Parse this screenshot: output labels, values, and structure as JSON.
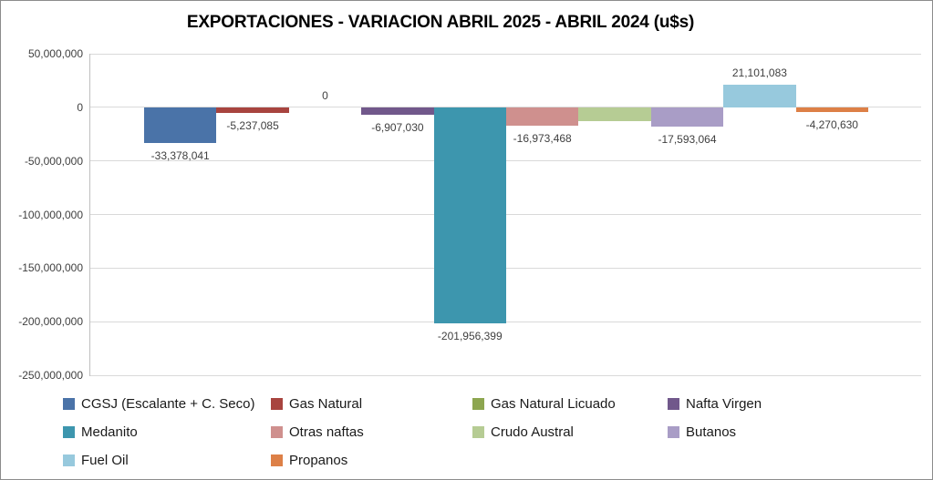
{
  "title": "EXPORTACIONES - VARIACION ABRIL 2025 - ABRIL 2024 (u$s)",
  "chart_data": {
    "type": "bar",
    "title": "EXPORTACIONES - VARIACION ABRIL 2025 - ABRIL 2024 (u$s)",
    "xlabel": "",
    "ylabel": "",
    "ylim": [
      -250000000,
      50000000
    ],
    "grid": "horizontal",
    "legend_position": "bottom",
    "y_ticks": [
      {
        "value": 50000000,
        "label": "50,000,000"
      },
      {
        "value": 0,
        "label": "0"
      },
      {
        "value": -50000000,
        "label": "-50,000,000"
      },
      {
        "value": -100000000,
        "label": "-100,000,000"
      },
      {
        "value": -150000000,
        "label": "-150,000,000"
      },
      {
        "value": -200000000,
        "label": "-200,000,000"
      },
      {
        "value": -250000000,
        "label": "-250,000,000"
      }
    ],
    "series": [
      {
        "name": "CGSJ (Escalante + C. Seco)",
        "value": -33378041,
        "label": "-33,378,041",
        "color": "#4A73A8"
      },
      {
        "name": "Gas Natural",
        "value": -5237085,
        "label": "-5,237,085",
        "color": "#A8443F"
      },
      {
        "name": "Gas Natural Licuado",
        "value": 0,
        "label": "0",
        "color": "#8DA650"
      },
      {
        "name": "Nafta Virgen",
        "value": -6907030,
        "label": "-6,907,030",
        "color": "#71588B"
      },
      {
        "name": "Medanito",
        "value": -201956399,
        "label": "-201,956,399",
        "color": "#3D96AE"
      },
      {
        "name": "Otras naftas",
        "value": -16973468,
        "label": "-16,973,468",
        "color": "#CF908E"
      },
      {
        "name": "Crudo Austral",
        "value": -12750000,
        "label": "",
        "color": "#B6CC94",
        "estimated": true
      },
      {
        "name": "Butanos",
        "value": -17593064,
        "label": "-17,593,064",
        "color": "#A99DC6"
      },
      {
        "name": "Fuel Oil",
        "value": 21101083,
        "label": "21,101,083",
        "color": "#97C9DD"
      },
      {
        "name": "Propanos",
        "value": -4270630,
        "label": "-4,270,630",
        "color": "#DD8047"
      }
    ]
  },
  "style": {
    "gridline_color": "#d9d9d9",
    "axis_line_color": "#bfbfbf",
    "label_text_color": "#3f3f3f",
    "title_color": "#000000",
    "background": "#ffffff"
  }
}
